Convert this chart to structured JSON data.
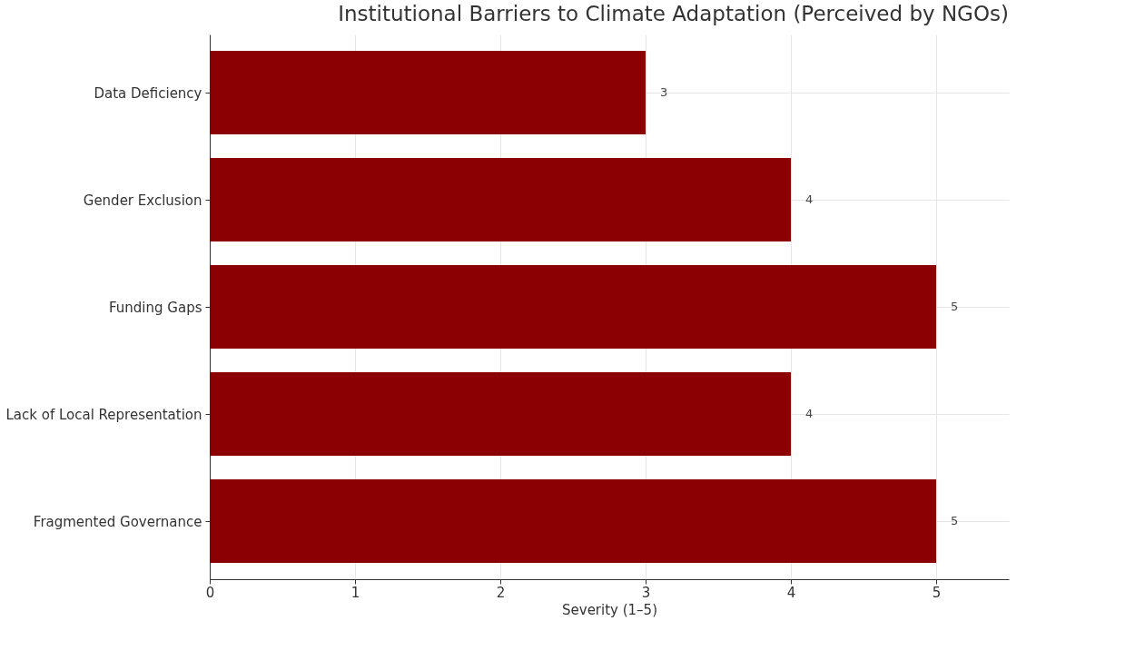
{
  "chart_data": {
    "type": "bar",
    "orientation": "horizontal",
    "title": "Institutional Barriers to Climate Adaptation (Perceived by NGOs)",
    "xlabel": "Severity (1–5)",
    "categories": [
      "Data Deficiency",
      "Gender Exclusion",
      "Funding Gaps",
      "Lack of Local Representation",
      "Fragmented Governance"
    ],
    "values": [
      3,
      4,
      5,
      4,
      5
    ],
    "color": "#8b0000",
    "xlim": [
      0,
      5.5
    ],
    "xticks": [
      0,
      1,
      2,
      3,
      4,
      5
    ],
    "grid": true,
    "data_labels": true
  }
}
